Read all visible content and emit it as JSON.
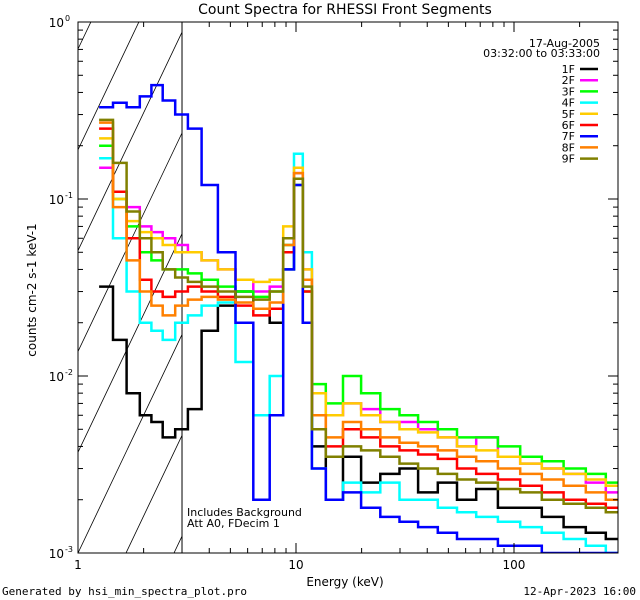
{
  "chart_data": {
    "type": "line",
    "title": "Count Spectra for RHESSI Front Segments",
    "xlabel": "Energy (keV)",
    "ylabel": "counts cm-2 s-1 keV-1",
    "xscale": "log",
    "yscale": "log",
    "xlim": [
      1,
      300
    ],
    "ylim": [
      0.001,
      1
    ],
    "x_ticks": [
      {
        "value": 1,
        "label": "1"
      },
      {
        "value": 10,
        "label": "10"
      },
      {
        "value": 100,
        "label": "100"
      }
    ],
    "y_ticks": [
      {
        "value": 0.001,
        "base": "10",
        "exp": "-3"
      },
      {
        "value": 0.01,
        "base": "10",
        "exp": "-2"
      },
      {
        "value": 0.1,
        "base": "10",
        "exp": "-1"
      },
      {
        "value": 1,
        "base": "10",
        "exp": "0"
      }
    ],
    "date": "17-Aug-2005",
    "time_range": "03:32:00 to 03:33:00",
    "hatched_region": {
      "x_start": 1,
      "x_end": 3
    },
    "annotations": [
      "Includes Background",
      "Att A0, FDecim 1"
    ],
    "series": [
      {
        "name": "1F",
        "color": "#000000",
        "x": [
          1.35,
          1.55,
          1.8,
          2.05,
          2.3,
          2.6,
          3.0,
          3.4,
          4.0,
          4.8,
          5.8,
          7.0,
          8.2,
          9.3,
          10.3,
          11.2,
          12.5,
          15,
          18,
          22,
          27,
          33,
          40,
          50,
          60,
          75,
          95,
          120,
          150,
          190,
          240,
          290
        ],
        "y": [
          0.032,
          0.016,
          0.008,
          0.006,
          0.0055,
          0.0045,
          0.005,
          0.0065,
          0.018,
          0.025,
          0.03,
          0.024,
          0.02,
          0.04,
          0.13,
          0.02,
          0.004,
          0.002,
          0.0035,
          0.0025,
          0.0028,
          0.003,
          0.0022,
          0.0025,
          0.002,
          0.0023,
          0.0018,
          0.0018,
          0.0016,
          0.0014,
          0.0013,
          0.0012
        ]
      },
      {
        "name": "2F",
        "color": "#ff00ff",
        "x": [
          1.35,
          1.55,
          1.8,
          2.05,
          2.3,
          2.6,
          3.0,
          3.4,
          4.0,
          4.8,
          5.8,
          7.0,
          8.2,
          9.3,
          10.3,
          11.2,
          12.5,
          15,
          18,
          22,
          27,
          33,
          40,
          50,
          60,
          75,
          95,
          120,
          150,
          190,
          240,
          290
        ],
        "y": [
          0.15,
          0.11,
          0.09,
          0.07,
          0.065,
          0.06,
          0.055,
          0.05,
          0.045,
          0.04,
          0.035,
          0.03,
          0.032,
          0.06,
          0.14,
          0.04,
          0.008,
          0.006,
          0.007,
          0.0065,
          0.0055,
          0.0055,
          0.005,
          0.0045,
          0.004,
          0.0045,
          0.0035,
          0.0032,
          0.003,
          0.0028,
          0.0025,
          0.0022
        ]
      },
      {
        "name": "3F",
        "color": "#00ff00",
        "x": [
          1.35,
          1.55,
          1.8,
          2.05,
          2.3,
          2.6,
          3.0,
          3.4,
          4.0,
          4.8,
          5.8,
          7.0,
          8.2,
          9.3,
          10.3,
          11.2,
          12.5,
          15,
          18,
          22,
          27,
          33,
          40,
          50,
          60,
          75,
          95,
          120,
          150,
          190,
          240,
          290
        ],
        "y": [
          0.2,
          0.1,
          0.07,
          0.05,
          0.045,
          0.04,
          0.04,
          0.038,
          0.035,
          0.032,
          0.03,
          0.028,
          0.03,
          0.055,
          0.12,
          0.03,
          0.009,
          0.007,
          0.01,
          0.008,
          0.0065,
          0.006,
          0.0055,
          0.005,
          0.0045,
          0.0045,
          0.004,
          0.0035,
          0.0033,
          0.003,
          0.0028,
          0.0025
        ]
      },
      {
        "name": "4F",
        "color": "#00ffff",
        "x": [
          1.35,
          1.55,
          1.8,
          2.05,
          2.3,
          2.6,
          3.0,
          3.4,
          4.0,
          4.8,
          5.8,
          7.0,
          8.2,
          9.3,
          10.3,
          11.2,
          12.5,
          15,
          18,
          22,
          27,
          33,
          40,
          50,
          60,
          75,
          95,
          120,
          150,
          190,
          240,
          290
        ],
        "y": [
          0.17,
          0.06,
          0.03,
          0.02,
          0.018,
          0.016,
          0.02,
          0.022,
          0.025,
          0.026,
          0.012,
          0.006,
          0.01,
          0.04,
          0.18,
          0.05,
          0.003,
          0.002,
          0.0025,
          0.0022,
          0.0025,
          0.002,
          0.002,
          0.0018,
          0.0017,
          0.0016,
          0.0015,
          0.0014,
          0.0013,
          0.0012,
          0.0011,
          0.001
        ]
      },
      {
        "name": "5F",
        "color": "#ffcc00",
        "x": [
          1.35,
          1.55,
          1.8,
          2.05,
          2.3,
          2.6,
          3.0,
          3.4,
          4.0,
          4.8,
          5.8,
          7.0,
          8.2,
          9.3,
          10.3,
          11.2,
          12.5,
          15,
          18,
          22,
          27,
          33,
          40,
          50,
          60,
          75,
          95,
          120,
          150,
          190,
          240,
          290
        ],
        "y": [
          0.22,
          0.1,
          0.075,
          0.065,
          0.06,
          0.055,
          0.05,
          0.05,
          0.045,
          0.04,
          0.035,
          0.034,
          0.035,
          0.07,
          0.15,
          0.04,
          0.008,
          0.006,
          0.007,
          0.006,
          0.0055,
          0.005,
          0.0048,
          0.0045,
          0.004,
          0.0038,
          0.0035,
          0.0032,
          0.003,
          0.0028,
          0.0026,
          0.0024
        ]
      },
      {
        "name": "6F",
        "color": "#ff0000",
        "x": [
          1.35,
          1.55,
          1.8,
          2.05,
          2.3,
          2.6,
          3.0,
          3.4,
          4.0,
          4.8,
          5.8,
          7.0,
          8.2,
          9.3,
          10.3,
          11.2,
          12.5,
          15,
          18,
          22,
          27,
          33,
          40,
          50,
          60,
          75,
          95,
          120,
          150,
          190,
          240,
          290
        ],
        "y": [
          0.25,
          0.11,
          0.06,
          0.035,
          0.03,
          0.028,
          0.03,
          0.032,
          0.03,
          0.028,
          0.025,
          0.022,
          0.024,
          0.05,
          0.13,
          0.03,
          0.006,
          0.004,
          0.005,
          0.0045,
          0.004,
          0.0038,
          0.0036,
          0.0034,
          0.003,
          0.0028,
          0.0026,
          0.0024,
          0.0022,
          0.002,
          0.0019,
          0.0018
        ]
      },
      {
        "name": "7F",
        "color": "#0000ff",
        "x": [
          1.35,
          1.55,
          1.8,
          2.05,
          2.3,
          2.6,
          3.0,
          3.4,
          4.0,
          4.8,
          5.8,
          7.0,
          8.2,
          9.3,
          10.3,
          11.2,
          12.5,
          15,
          18,
          22,
          27,
          33,
          40,
          50,
          60,
          75,
          95,
          120,
          150,
          190,
          240,
          290
        ],
        "y": [
          0.33,
          0.35,
          0.33,
          0.38,
          0.44,
          0.36,
          0.3,
          0.25,
          0.12,
          0.05,
          0.02,
          0.002,
          0.006,
          0.04,
          0.12,
          0.02,
          0.003,
          0.002,
          0.0022,
          0.0018,
          0.0016,
          0.0015,
          0.0014,
          0.0013,
          0.0012,
          0.0012,
          0.0011,
          0.0011,
          0.001,
          0.001,
          0.001,
          0.001
        ]
      },
      {
        "name": "8F",
        "color": "#ff8000",
        "x": [
          1.35,
          1.55,
          1.8,
          2.05,
          2.3,
          2.6,
          3.0,
          3.4,
          4.0,
          4.8,
          5.8,
          7.0,
          8.2,
          9.3,
          10.3,
          11.2,
          12.5,
          15,
          18,
          22,
          27,
          33,
          40,
          50,
          60,
          75,
          95,
          120,
          150,
          190,
          240,
          290
        ],
        "y": [
          0.27,
          0.09,
          0.045,
          0.03,
          0.025,
          0.022,
          0.025,
          0.027,
          0.028,
          0.027,
          0.026,
          0.024,
          0.026,
          0.055,
          0.14,
          0.035,
          0.006,
          0.0045,
          0.0055,
          0.005,
          0.0045,
          0.0042,
          0.004,
          0.0038,
          0.0035,
          0.0033,
          0.003,
          0.0028,
          0.0026,
          0.0024,
          0.0022,
          0.002
        ]
      },
      {
        "name": "9F",
        "color": "#808000",
        "x": [
          1.35,
          1.55,
          1.8,
          2.05,
          2.3,
          2.6,
          3.0,
          3.4,
          4.0,
          4.8,
          5.8,
          7.0,
          8.2,
          9.3,
          10.3,
          11.2,
          12.5,
          15,
          18,
          22,
          27,
          33,
          40,
          50,
          60,
          75,
          95,
          120,
          150,
          190,
          240,
          290
        ],
        "y": [
          0.28,
          0.16,
          0.085,
          0.06,
          0.05,
          0.04,
          0.036,
          0.034,
          0.032,
          0.03,
          0.028,
          0.027,
          0.03,
          0.06,
          0.13,
          0.032,
          0.005,
          0.0035,
          0.004,
          0.0038,
          0.0035,
          0.0032,
          0.003,
          0.0028,
          0.0026,
          0.0025,
          0.0023,
          0.0022,
          0.002,
          0.0019,
          0.0018,
          0.0017
        ]
      }
    ]
  },
  "footer": {
    "generated_by": "Generated by hsi_min_spectra_plot.pro",
    "timestamp": "12-Apr-2023 16:00"
  }
}
